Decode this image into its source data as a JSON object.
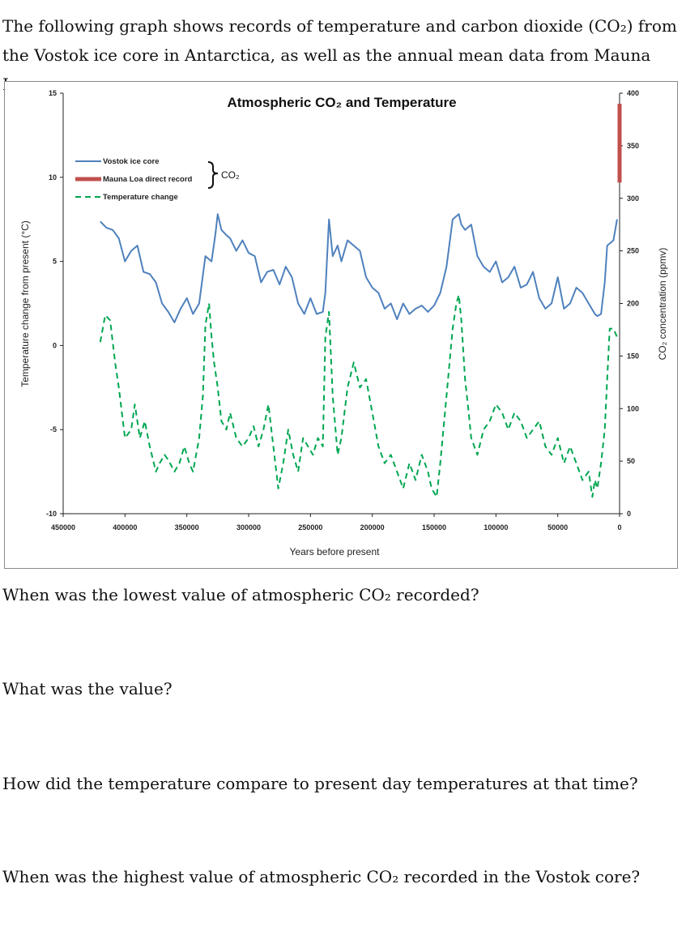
{
  "intro": "The following graph shows records of temperature and carbon dioxide (CO₂) from the Vostok ice core in Antarctica, as well as the annual mean data from Mauna Loa.",
  "questions": [
    "When was the lowest value of atmospheric CO₂ recorded?",
    "What was the value?",
    "How did the temperature compare to present day temperatures at that time?",
    "When was the highest value of atmospheric CO₂ recorded in the Vostok core?"
  ],
  "colors": {
    "co2": "#4f81bd",
    "mauna_loa": "#c0504d",
    "temperature": "#00a651"
  },
  "chart_data": {
    "type": "line",
    "title": "Atmospheric CO₂ and Temperature",
    "xlabel": "Years before present",
    "ylabel_left": "Temperature change from present (°C)",
    "ylabel_right": "CO₂ concentration (ppmv)",
    "xlim": [
      450000,
      0
    ],
    "ylim_left": [
      -10,
      15
    ],
    "ylim_right": [
      0,
      400
    ],
    "x_ticks": [
      "450000",
      "400000",
      "350000",
      "300000",
      "250000",
      "200000",
      "150000",
      "100000",
      "50000",
      "0"
    ],
    "y_left_ticks": [
      "-10",
      "-5",
      "0",
      "5",
      "10",
      "15"
    ],
    "y_right_ticks": [
      "0",
      "50",
      "100",
      "150",
      "200",
      "250",
      "300",
      "350",
      "400"
    ],
    "legend_placement": "top-left",
    "legend": {
      "vostok": "Vostok ice core",
      "mauna_loa": "Mauna Loa direct record",
      "temperature": "Temperature change",
      "bracket_label": "CO₂"
    },
    "series": [
      {
        "name": "Vostok ice core",
        "axis": "right",
        "style": "solid",
        "x": [
          420000,
          415000,
          410000,
          405000,
          400000,
          395000,
          390000,
          385000,
          380000,
          375000,
          370000,
          365000,
          360000,
          355000,
          350000,
          345000,
          340000,
          335000,
          330000,
          327000,
          325000,
          322000,
          318000,
          315000,
          310000,
          305000,
          300000,
          295000,
          290000,
          285000,
          280000,
          275000,
          270000,
          265000,
          260000,
          255000,
          250000,
          245000,
          240000,
          238000,
          235000,
          232000,
          228000,
          225000,
          220000,
          215000,
          210000,
          205000,
          200000,
          195000,
          190000,
          185000,
          180000,
          175000,
          170000,
          165000,
          160000,
          155000,
          150000,
          145000,
          140000,
          135000,
          130000,
          128000,
          125000,
          120000,
          115000,
          110000,
          105000,
          100000,
          95000,
          90000,
          85000,
          80000,
          75000,
          70000,
          65000,
          60000,
          55000,
          50000,
          45000,
          40000,
          35000,
          30000,
          25000,
          20000,
          18000,
          15000,
          12000,
          10000,
          5000,
          2000
        ],
        "y": [
          278,
          272,
          270,
          262,
          240,
          250,
          255,
          230,
          228,
          220,
          200,
          192,
          182,
          195,
          205,
          190,
          200,
          245,
          240,
          265,
          285,
          270,
          265,
          262,
          250,
          260,
          248,
          245,
          220,
          230,
          232,
          218,
          235,
          225,
          200,
          190,
          205,
          190,
          192,
          210,
          280,
          245,
          255,
          240,
          260,
          255,
          250,
          225,
          215,
          210,
          195,
          200,
          185,
          200,
          190,
          195,
          198,
          192,
          198,
          210,
          235,
          280,
          285,
          275,
          270,
          275,
          245,
          235,
          230,
          240,
          220,
          225,
          235,
          215,
          218,
          230,
          205,
          195,
          200,
          225,
          195,
          200,
          215,
          210,
          200,
          190,
          188,
          190,
          220,
          255,
          260,
          280
        ]
      },
      {
        "name": "Mauna Loa direct record",
        "axis": "right",
        "style": "thick",
        "x": [
          0,
          0
        ],
        "y": [
          315,
          390
        ]
      },
      {
        "name": "Temperature change",
        "axis": "left",
        "style": "dashed",
        "x": [
          420000,
          416000,
          412000,
          408000,
          405000,
          400000,
          395000,
          392000,
          388000,
          384000,
          380000,
          375000,
          372000,
          368000,
          365000,
          360000,
          356000,
          352000,
          348000,
          345000,
          340000,
          337000,
          335000,
          332000,
          330000,
          328000,
          325000,
          322000,
          318000,
          315000,
          310000,
          305000,
          300000,
          296000,
          292000,
          288000,
          284000,
          280000,
          276000,
          272000,
          268000,
          264000,
          260000,
          256000,
          252000,
          248000,
          244000,
          240000,
          238000,
          235000,
          232000,
          228000,
          225000,
          220000,
          215000,
          210000,
          205000,
          200000,
          195000,
          190000,
          185000,
          180000,
          175000,
          170000,
          165000,
          160000,
          155000,
          152000,
          148000,
          145000,
          140000,
          135000,
          132000,
          130000,
          128000,
          125000,
          122000,
          120000,
          115000,
          110000,
          105000,
          100000,
          95000,
          90000,
          85000,
          80000,
          75000,
          70000,
          65000,
          60000,
          55000,
          50000,
          45000,
          40000,
          35000,
          30000,
          25000,
          22000,
          20000,
          18000,
          15000,
          12000,
          10000,
          8000,
          5000,
          2000
        ],
        "y": [
          0.2,
          1.8,
          1.5,
          -1,
          -2.5,
          -5.5,
          -5,
          -3.5,
          -5.5,
          -4.5,
          -6,
          -7.5,
          -7,
          -6.5,
          -6.8,
          -7.5,
          -7,
          -6,
          -7,
          -7.5,
          -5.5,
          -3,
          1.2,
          2.5,
          0.5,
          -1,
          -2.5,
          -4.5,
          -5,
          -4,
          -5.5,
          -6,
          -5.5,
          -4.8,
          -6,
          -5,
          -3.5,
          -6,
          -8.5,
          -7,
          -5,
          -6.5,
          -7.5,
          -5.5,
          -6,
          -6.5,
          -5.5,
          -6,
          0.5,
          2,
          -3,
          -6.5,
          -5.5,
          -2.5,
          -1,
          -2.5,
          -2,
          -4,
          -6,
          -7,
          -6.5,
          -7.5,
          -8.5,
          -7,
          -8,
          -6.5,
          -7.5,
          -8.5,
          -9,
          -7,
          -3,
          1,
          2.5,
          3,
          1.5,
          -2,
          -4,
          -5.5,
          -6.5,
          -5,
          -4.5,
          -3.5,
          -4,
          -5,
          -4,
          -4.5,
          -5.5,
          -5,
          -4.5,
          -6,
          -6.5,
          -5.5,
          -7,
          -6,
          -7,
          -8,
          -7.5,
          -9,
          -8,
          -8.5,
          -7,
          -5,
          -2,
          1,
          1,
          0.5
        ]
      }
    ]
  }
}
